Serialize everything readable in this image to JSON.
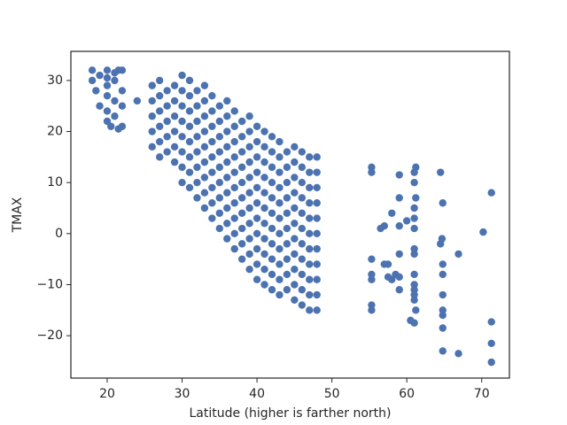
{
  "chart_data": {
    "type": "scatter",
    "x_label": "Latitude (higher is farther north)",
    "y_label": "TMAX",
    "color": "#4c72b0",
    "grid": false,
    "xlim": [
      15.15,
      73.7
    ],
    "ylim": [
      -28.3,
      35.7
    ],
    "xticks": [
      20,
      30,
      40,
      50,
      60,
      70
    ],
    "yticks": [
      {
        "value": -20,
        "label": "−20"
      },
      {
        "value": -10,
        "label": "−10"
      },
      0,
      10,
      20,
      30
    ],
    "x": [
      18,
      18,
      18.5,
      19,
      19,
      20,
      20,
      20,
      20,
      20,
      20.5,
      21,
      21,
      21,
      21.5,
      21.5,
      22,
      22,
      22,
      22,
      21,
      20,
      24,
      26,
      26,
      26,
      26,
      26,
      27,
      27,
      27,
      27,
      27,
      27,
      28,
      28,
      28,
      28,
      28,
      29,
      29,
      29,
      29,
      29,
      29,
      30,
      30,
      30,
      30,
      30,
      30,
      30,
      30,
      31,
      31,
      31,
      31,
      31,
      31,
      31,
      31,
      32,
      32,
      32,
      32,
      32,
      32,
      32,
      32,
      33,
      33,
      33,
      33,
      33,
      33,
      33,
      33,
      33,
      34,
      34,
      34,
      34,
      34,
      34,
      34,
      34,
      34,
      35,
      35,
      35,
      35,
      35,
      35,
      35,
      35,
      35,
      36,
      36,
      36,
      36,
      36,
      36,
      36,
      36,
      36,
      36,
      37,
      37,
      37,
      37,
      37,
      37,
      37,
      37,
      37,
      37,
      38,
      38,
      38,
      38,
      38,
      38,
      38,
      38,
      38,
      38,
      39,
      39,
      39,
      39,
      39,
      39,
      39,
      39,
      39,
      39,
      39,
      40,
      40,
      40,
      40,
      40,
      40,
      40,
      40,
      40,
      40,
      40,
      41,
      41,
      41,
      41,
      41,
      41,
      41,
      41,
      41,
      41,
      41,
      42,
      42,
      42,
      42,
      42,
      42,
      42,
      42,
      42,
      42,
      42,
      43,
      43,
      43,
      43,
      43,
      43,
      43,
      43,
      43,
      43,
      43,
      44,
      44,
      44,
      44,
      44,
      44,
      44,
      44,
      44,
      44,
      45,
      45,
      45,
      45,
      45,
      45,
      45,
      45,
      45,
      45,
      45,
      46,
      46,
      46,
      46,
      46,
      46,
      46,
      46,
      46,
      46,
      46,
      47,
      47,
      47,
      47,
      47,
      47,
      47,
      47,
      47,
      47,
      47,
      48,
      48,
      48,
      48,
      48,
      48,
      48,
      48,
      48,
      48,
      48,
      55.3,
      55.3,
      55.3,
      55.3,
      55.3,
      55.3,
      55.3,
      56.5,
      57,
      57,
      57.5,
      57.5,
      58,
      58,
      58.5,
      59,
      59,
      59,
      59,
      59,
      59,
      60,
      60.5,
      61,
      61,
      61,
      61,
      61,
      61,
      61,
      61,
      61,
      61,
      61,
      61,
      61,
      61.2,
      61.2,
      61.2,
      64.5,
      64.5,
      64.7,
      64.8,
      64.8,
      64.8,
      64.8,
      64.8,
      64.8,
      64.8,
      64.8,
      66.9,
      66.9,
      70.2,
      71.3,
      71.3,
      71.3,
      71.3
    ],
    "values": [
      32,
      30,
      28,
      25,
      31,
      32,
      29,
      27,
      24,
      22,
      21,
      30,
      26,
      23,
      20.5,
      32,
      32,
      28,
      25,
      21,
      31.5,
      30.5,
      26,
      17,
      20,
      23,
      26,
      29,
      15,
      18,
      21,
      24,
      27,
      30,
      16,
      19,
      22,
      25,
      28,
      14,
      17,
      20,
      23,
      26,
      29,
      10,
      13,
      16,
      19,
      22,
      25,
      28,
      31,
      9,
      12,
      15,
      18,
      21,
      24,
      27,
      30,
      7,
      10,
      13,
      16,
      19,
      22,
      25,
      28,
      5,
      8,
      11,
      14,
      17,
      20,
      23,
      26,
      29,
      3,
      6,
      9,
      12,
      15,
      18,
      21,
      24,
      27,
      1,
      4,
      7,
      10,
      13,
      16,
      19,
      22,
      25,
      -1,
      2,
      5,
      8,
      11,
      14,
      17,
      20,
      23,
      26,
      -3,
      0,
      3,
      6,
      9,
      12,
      15,
      18,
      21,
      24,
      -5,
      -2,
      1,
      4,
      7,
      10,
      13,
      16,
      19,
      22,
      -7,
      -4,
      -1,
      2,
      5,
      8,
      11,
      14,
      17,
      20,
      23,
      -9,
      -6,
      -3,
      0,
      3,
      6,
      9,
      12,
      15,
      18,
      21,
      -10,
      -7,
      -4,
      -1,
      2,
      5,
      8,
      11,
      14,
      17,
      20,
      -11,
      -8,
      -5,
      -2,
      1,
      4,
      7,
      10,
      13,
      16,
      19,
      -12,
      -9,
      -6,
      -3,
      0,
      3,
      6,
      9,
      12,
      15,
      18,
      -11,
      -8,
      -5,
      -2,
      1,
      4,
      7,
      10,
      13,
      16,
      -13,
      -10,
      -7,
      -4,
      -1,
      2,
      5,
      8,
      11,
      14,
      17,
      -14,
      -11,
      -8,
      -5,
      -2,
      1,
      4,
      7,
      10,
      13,
      16,
      -15,
      -12,
      -9,
      -6,
      -3,
      0,
      3,
      6,
      9,
      12,
      15,
      -15,
      -12,
      -9,
      -6,
      -3,
      0,
      3,
      6,
      9,
      12,
      15,
      13,
      12,
      -5,
      -8,
      -9,
      -14,
      -15,
      1,
      1.5,
      -6,
      -8.5,
      -6,
      -9,
      4,
      -8,
      11.5,
      7,
      1.5,
      -4,
      -8.5,
      -11,
      2.5,
      -17,
      12,
      10,
      5,
      3,
      1,
      -3,
      -4,
      -8,
      -10,
      -11,
      -12,
      -13,
      -17.5,
      13,
      7,
      -15,
      12,
      -2,
      -1,
      6,
      -6,
      -8,
      -12,
      -15,
      -16,
      -18.5,
      -23,
      -4,
      -23.5,
      0.3,
      8,
      -17.3,
      -21.5,
      -25.2
    ]
  }
}
